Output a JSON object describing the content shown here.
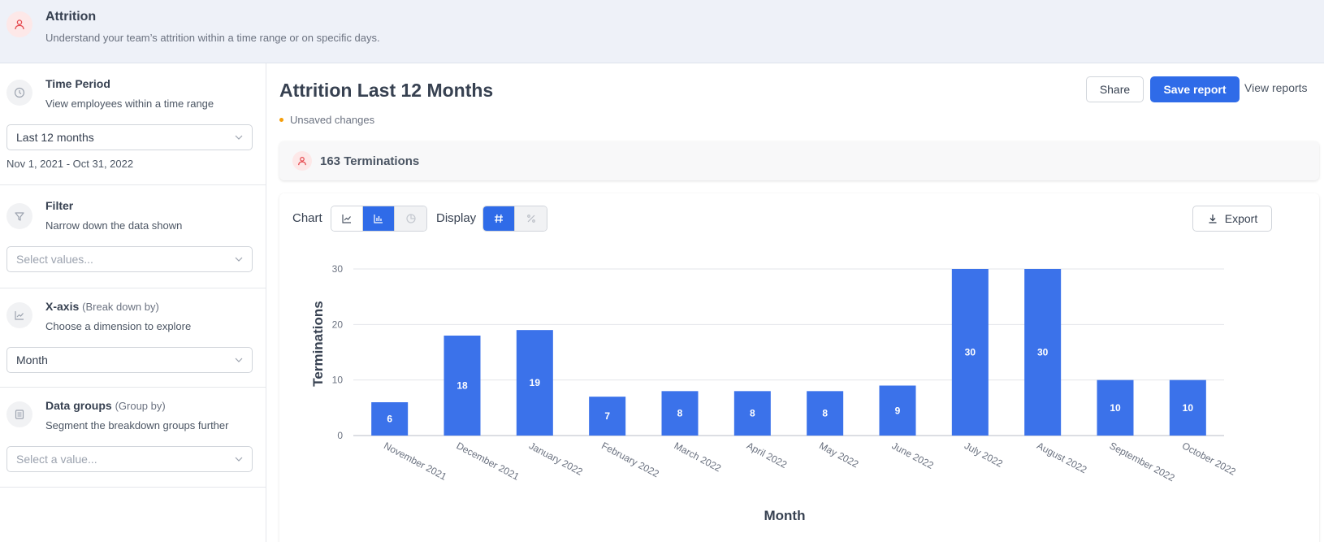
{
  "header": {
    "title": "Attrition",
    "subtitle": "Understand your team’s attrition within a time range or on specific days.",
    "icon": "user-icon"
  },
  "sidebar": {
    "time_period": {
      "title": "Time Period",
      "subtitle": "View employees within a time range",
      "selected": "Last 12 months",
      "date_range": "Nov 1, 2021 - Oct 31, 2022",
      "icon": "clock-icon"
    },
    "filter": {
      "title": "Filter",
      "subtitle": "Narrow down the data shown",
      "placeholder": "Select values...",
      "icon": "funnel-icon"
    },
    "x_axis": {
      "title": "X-axis",
      "title_suffix": "(Break down by)",
      "subtitle": "Choose a dimension to explore",
      "selected": "Month",
      "icon": "line-chart-icon"
    },
    "data_groups": {
      "title": "Data groups",
      "title_suffix": "(Group by)",
      "subtitle": "Segment the breakdown groups further",
      "placeholder": "Select a value...",
      "icon": "list-icon"
    }
  },
  "main": {
    "title": "Attrition Last 12 Months",
    "unsaved": "Unsaved changes",
    "share_label": "Share",
    "save_label": "Save report",
    "view_reports_label": "View reports",
    "terminations_summary": "163 Terminations",
    "chart_label": "Chart",
    "display_label": "Display",
    "export_label": "Export"
  },
  "colors": {
    "accent": "#2f6be8",
    "bar": "#3b72ea",
    "unsaved_dot": "#f59e0b",
    "icon_red": "#e5484d"
  },
  "chart_data": {
    "type": "bar",
    "categories": [
      "November 2021",
      "December 2021",
      "January 2022",
      "February 2022",
      "March 2022",
      "April 2022",
      "May 2022",
      "June 2022",
      "July 2022",
      "August 2022",
      "September 2022",
      "October 2022"
    ],
    "values": [
      6,
      18,
      19,
      7,
      8,
      8,
      8,
      9,
      30,
      30,
      10,
      10
    ],
    "xlabel": "Month",
    "ylabel": "Terminations",
    "ylim": [
      0,
      30
    ],
    "yticks": [
      0,
      10,
      20,
      30
    ],
    "grid": true,
    "data_labels": true
  }
}
